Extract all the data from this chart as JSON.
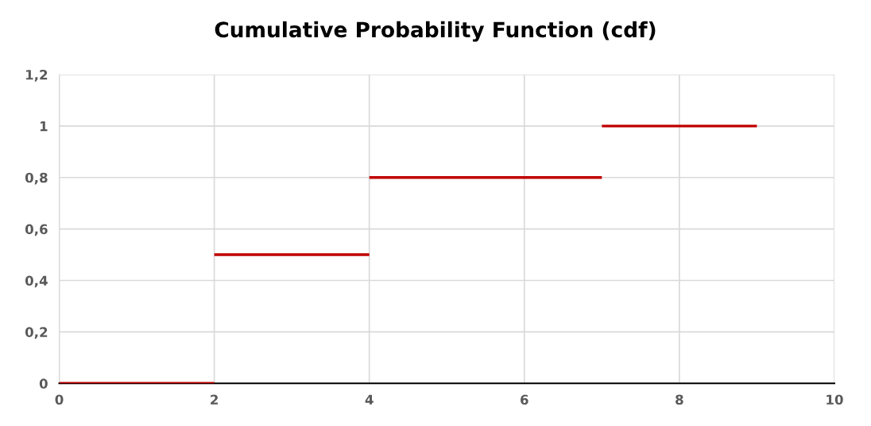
{
  "chart_data": {
    "type": "line",
    "title": "Cumulative Probability Function (cdf)",
    "series": [
      {
        "color": "#c00000",
        "x": [
          0,
          2
        ],
        "values": [
          0,
          0
        ]
      },
      {
        "color": "#c00000",
        "x": [
          2,
          4
        ],
        "values": [
          0.5,
          0.5
        ]
      },
      {
        "color": "#c00000",
        "x": [
          4,
          7
        ],
        "values": [
          0.8,
          0.8
        ]
      },
      {
        "color": "#c00000",
        "x": [
          7,
          9
        ],
        "values": [
          1,
          1
        ]
      }
    ],
    "xlim": [
      0,
      10
    ],
    "xticks": [
      0,
      2,
      4,
      6,
      8,
      10
    ],
    "ylim": [
      0,
      1.2
    ],
    "yticks": [
      0,
      {
        "value": 0.2,
        "label": "0,2"
      },
      {
        "value": 0.4,
        "label": "0,4"
      },
      {
        "value": 0.6,
        "label": "0,6"
      },
      {
        "value": 0.8,
        "label": "0,8"
      },
      1,
      {
        "value": 1.2,
        "label": "1,2"
      }
    ],
    "grid": true
  }
}
